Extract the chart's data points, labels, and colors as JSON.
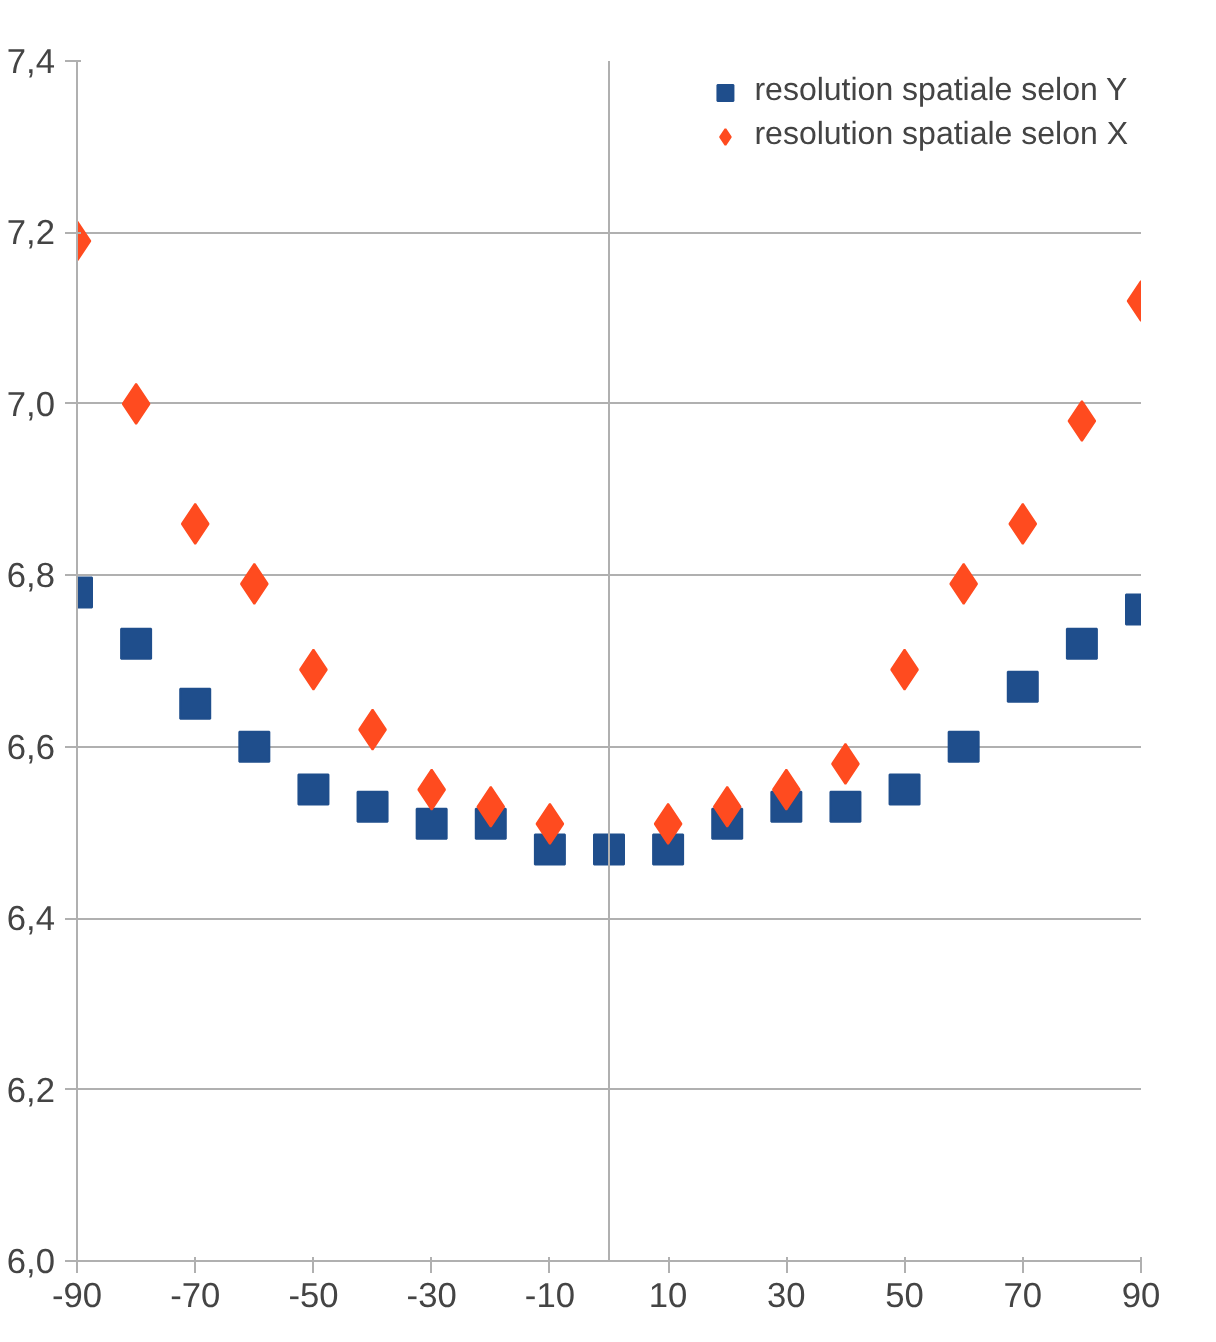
{
  "chart_data": {
    "type": "scatter",
    "x": [
      -90,
      -80,
      -70,
      -60,
      -50,
      -40,
      -30,
      -20,
      -10,
      0,
      10,
      20,
      30,
      40,
      50,
      60,
      70,
      80,
      90
    ],
    "series": [
      {
        "name": "resolution spatiale selon Y",
        "color": "#1f4e8c",
        "marker": "square",
        "values": [
          6.78,
          6.72,
          6.65,
          6.6,
          6.55,
          6.53,
          6.51,
          6.51,
          6.48,
          6.48,
          6.48,
          6.51,
          6.53,
          6.53,
          6.55,
          6.6,
          6.67,
          6.72,
          6.76
        ]
      },
      {
        "name": "resolution spatiale selon X",
        "color": "#ff4b1f",
        "marker": "diamond",
        "values": [
          7.19,
          7.0,
          6.86,
          6.79,
          6.69,
          6.62,
          6.55,
          6.53,
          6.51,
          null,
          6.51,
          6.53,
          6.55,
          6.58,
          6.69,
          6.79,
          6.86,
          6.98,
          7.12
        ]
      }
    ],
    "xlim": [
      -90,
      90
    ],
    "xticks": [
      -90,
      -70,
      -50,
      -30,
      -10,
      10,
      30,
      50,
      70,
      90
    ],
    "ylim": [
      6.0,
      7.4
    ],
    "yticks": [
      {
        "value": 6.0,
        "label": "6,0"
      },
      {
        "value": 6.2,
        "label": "6,2"
      },
      {
        "value": 6.4,
        "label": "6,4"
      },
      {
        "value": 6.6,
        "label": "6,6"
      },
      {
        "value": 6.8,
        "label": "6,8"
      },
      {
        "value": 7.0,
        "label": "7,0"
      },
      {
        "value": 7.2,
        "label": "7,2"
      },
      {
        "value": 7.4,
        "label": "7,4"
      }
    ],
    "grid": "y",
    "legend": "top right"
  }
}
